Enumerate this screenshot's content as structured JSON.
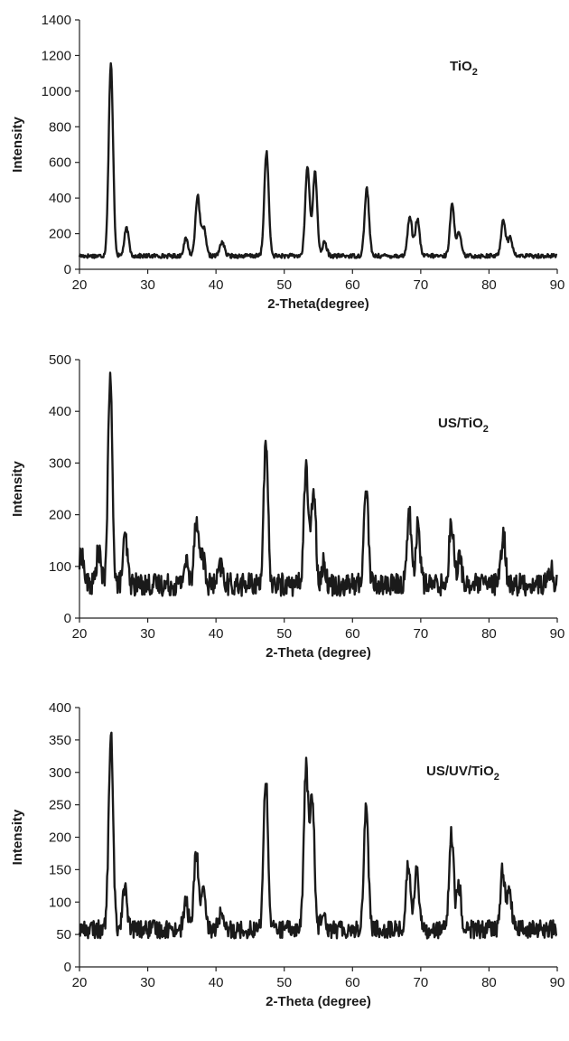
{
  "chart_data": [
    {
      "type": "line",
      "label": "TiO2",
      "label_main": "TiO",
      "label_sub": "2",
      "xlabel": "2-Theta(degree)",
      "ylabel": "Intensity",
      "xlim": [
        20,
        90
      ],
      "ylim": [
        0,
        1400
      ],
      "xticks": [
        20,
        30,
        40,
        50,
        60,
        70,
        80,
        90
      ],
      "yticks": [
        0,
        200,
        400,
        600,
        800,
        1000,
        1200,
        1400
      ],
      "baseline": 75,
      "noise": 12,
      "peaks": [
        {
          "x": 24.6,
          "y": 1150
        },
        {
          "x": 26.9,
          "y": 230
        },
        {
          "x": 35.6,
          "y": 170
        },
        {
          "x": 37.3,
          "y": 410
        },
        {
          "x": 38.2,
          "y": 230
        },
        {
          "x": 40.9,
          "y": 155
        },
        {
          "x": 47.4,
          "y": 660
        },
        {
          "x": 53.4,
          "y": 575
        },
        {
          "x": 54.5,
          "y": 545
        },
        {
          "x": 55.9,
          "y": 150
        },
        {
          "x": 62.1,
          "y": 455
        },
        {
          "x": 68.4,
          "y": 300
        },
        {
          "x": 69.5,
          "y": 280
        },
        {
          "x": 74.6,
          "y": 360
        },
        {
          "x": 75.6,
          "y": 200
        },
        {
          "x": 82.1,
          "y": 280
        },
        {
          "x": 83.1,
          "y": 180
        }
      ]
    },
    {
      "type": "line",
      "label": "US/TiO2",
      "label_main": "US/TiO",
      "label_sub": "2",
      "xlabel": "2-Theta (degree)",
      "ylabel": "Intensity",
      "xlim": [
        20,
        90
      ],
      "ylim": [
        0,
        500
      ],
      "xticks": [
        20,
        30,
        40,
        50,
        60,
        70,
        80,
        90
      ],
      "yticks": [
        0,
        100,
        200,
        300,
        400,
        500
      ],
      "baseline": 65,
      "noise": 22,
      "peaks": [
        {
          "x": 20.3,
          "y": 125
        },
        {
          "x": 22.8,
          "y": 130
        },
        {
          "x": 24.5,
          "y": 460
        },
        {
          "x": 26.7,
          "y": 155
        },
        {
          "x": 35.6,
          "y": 110
        },
        {
          "x": 37.1,
          "y": 195
        },
        {
          "x": 38.0,
          "y": 125
        },
        {
          "x": 40.7,
          "y": 100
        },
        {
          "x": 47.3,
          "y": 330
        },
        {
          "x": 53.2,
          "y": 295
        },
        {
          "x": 54.3,
          "y": 255
        },
        {
          "x": 55.8,
          "y": 105
        },
        {
          "x": 62.0,
          "y": 255
        },
        {
          "x": 68.3,
          "y": 205
        },
        {
          "x": 69.6,
          "y": 180
        },
        {
          "x": 74.5,
          "y": 190
        },
        {
          "x": 75.7,
          "y": 115
        },
        {
          "x": 82.1,
          "y": 160
        },
        {
          "x": 89.0,
          "y": 95
        }
      ]
    },
    {
      "type": "line",
      "label": "US/UV/TiO2",
      "label_main": "US/UV/TiO",
      "label_sub": "2",
      "xlabel": "2-Theta (degree)",
      "ylabel": "Intensity",
      "xlim": [
        20,
        90
      ],
      "ylim": [
        0,
        400
      ],
      "xticks": [
        20,
        30,
        40,
        50,
        60,
        70,
        80,
        90
      ],
      "yticks": [
        0,
        50,
        100,
        150,
        200,
        250,
        300,
        350,
        400
      ],
      "baseline": 58,
      "noise": 14,
      "peaks": [
        {
          "x": 24.6,
          "y": 358
        },
        {
          "x": 26.6,
          "y": 125
        },
        {
          "x": 35.6,
          "y": 100
        },
        {
          "x": 37.1,
          "y": 178
        },
        {
          "x": 38.1,
          "y": 115
        },
        {
          "x": 40.6,
          "y": 80
        },
        {
          "x": 47.3,
          "y": 293
        },
        {
          "x": 53.2,
          "y": 307
        },
        {
          "x": 54.1,
          "y": 262
        },
        {
          "x": 55.7,
          "y": 90
        },
        {
          "x": 62.0,
          "y": 252
        },
        {
          "x": 68.2,
          "y": 160
        },
        {
          "x": 69.4,
          "y": 155
        },
        {
          "x": 74.5,
          "y": 205
        },
        {
          "x": 75.6,
          "y": 125
        },
        {
          "x": 82.0,
          "y": 150
        },
        {
          "x": 83.0,
          "y": 120
        }
      ]
    }
  ]
}
